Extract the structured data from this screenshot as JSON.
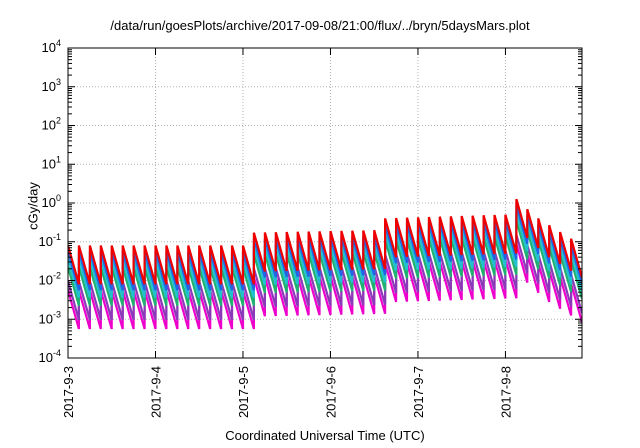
{
  "chart_data": {
    "type": "line",
    "title": "/data/run/goesPlots/archive/2017-09-08/21:00/flux/../bryn/5daysMars.plot",
    "xlabel": "Coordinated Universal Time (UTC)",
    "ylabel": "cGy/day",
    "y_scale": "log",
    "ylim": [
      0.0001,
      10000
    ],
    "y_ticks": [
      {
        "base": "10",
        "exp": "-4"
      },
      {
        "base": "10",
        "exp": "-3"
      },
      {
        "base": "10",
        "exp": "-2"
      },
      {
        "base": "10",
        "exp": "-1"
      },
      {
        "base": "10",
        "exp": "0"
      },
      {
        "base": "10",
        "exp": "1"
      },
      {
        "base": "10",
        "exp": "2"
      },
      {
        "base": "10",
        "exp": "3"
      },
      {
        "base": "10",
        "exp": "4"
      }
    ],
    "x_tick_labels": [
      "2017-9-3",
      "2017-9-4",
      "2017-9-5",
      "2017-9-6",
      "2017-9-7",
      "2017-9-8"
    ],
    "xlim": [
      "2017-09-03 00:00",
      "2017-09-08 21:00"
    ],
    "grid": true,
    "legend": "none",
    "cycle_hours": 3,
    "series": [
      {
        "color": "#ee0000",
        "peak_ratio": 1.0,
        "trough_ratio": 0.1,
        "envelope": [
          [
            "2017-09-03 00:00",
            0.08
          ],
          [
            "2017-09-05 00:00",
            0.08
          ],
          [
            "2017-09-05 01:30",
            0.17
          ],
          [
            "2017-09-06 14:00",
            0.2
          ],
          [
            "2017-09-06 15:00",
            0.4
          ],
          [
            "2017-09-08 00:00",
            0.5
          ],
          [
            "2017-09-08 01:00",
            2.0
          ],
          [
            "2017-09-08 04:00",
            1.0
          ],
          [
            "2017-09-08 09:00",
            0.4
          ],
          [
            "2017-09-08 21:00",
            0.08
          ]
        ]
      },
      {
        "color": "#1e66e6",
        "peak_ratio": 0.7,
        "trough_ratio": 0.1,
        "envelope": [
          [
            "2017-09-03 00:00",
            0.08
          ],
          [
            "2017-09-05 00:00",
            0.08
          ],
          [
            "2017-09-05 01:30",
            0.17
          ],
          [
            "2017-09-06 14:00",
            0.2
          ],
          [
            "2017-09-06 15:00",
            0.4
          ],
          [
            "2017-09-08 00:00",
            0.5
          ],
          [
            "2017-09-08 01:00",
            2.0
          ],
          [
            "2017-09-08 04:00",
            1.0
          ],
          [
            "2017-09-08 09:00",
            0.4
          ],
          [
            "2017-09-08 21:00",
            0.08
          ]
        ]
      },
      {
        "color": "#20c0d0",
        "peak_ratio": 0.45,
        "trough_ratio": 0.1,
        "envelope": [
          [
            "2017-09-03 00:00",
            0.08
          ],
          [
            "2017-09-05 00:00",
            0.08
          ],
          [
            "2017-09-05 01:30",
            0.17
          ],
          [
            "2017-09-06 14:00",
            0.2
          ],
          [
            "2017-09-06 15:00",
            0.4
          ],
          [
            "2017-09-08 00:00",
            0.5
          ],
          [
            "2017-09-08 01:00",
            2.0
          ],
          [
            "2017-09-08 04:00",
            1.0
          ],
          [
            "2017-09-08 09:00",
            0.4
          ],
          [
            "2017-09-08 21:00",
            0.08
          ]
        ]
      },
      {
        "color": "#20b070",
        "peak_ratio": 0.28,
        "trough_ratio": 0.1,
        "envelope": [
          [
            "2017-09-03 00:00",
            0.08
          ],
          [
            "2017-09-05 00:00",
            0.08
          ],
          [
            "2017-09-05 01:30",
            0.17
          ],
          [
            "2017-09-06 14:00",
            0.2
          ],
          [
            "2017-09-06 15:00",
            0.4
          ],
          [
            "2017-09-08 00:00",
            0.5
          ],
          [
            "2017-09-08 01:00",
            2.0
          ],
          [
            "2017-09-08 04:00",
            1.0
          ],
          [
            "2017-09-08 09:00",
            0.4
          ],
          [
            "2017-09-08 21:00",
            0.08
          ]
        ]
      },
      {
        "color": "#8a3ab8",
        "peak_ratio": 0.12,
        "trough_ratio": 0.1,
        "envelope": [
          [
            "2017-09-03 00:00",
            0.08
          ],
          [
            "2017-09-05 00:00",
            0.08
          ],
          [
            "2017-09-05 01:30",
            0.17
          ],
          [
            "2017-09-06 14:00",
            0.2
          ],
          [
            "2017-09-06 15:00",
            0.4
          ],
          [
            "2017-09-08 00:00",
            0.5
          ],
          [
            "2017-09-08 01:00",
            2.0
          ],
          [
            "2017-09-08 04:00",
            1.0
          ],
          [
            "2017-09-08 09:00",
            0.4
          ],
          [
            "2017-09-08 21:00",
            0.08
          ]
        ]
      },
      {
        "color": "#ee00cc",
        "peak_ratio": 0.07,
        "trough_ratio": 0.1,
        "envelope": [
          [
            "2017-09-03 00:00",
            0.08
          ],
          [
            "2017-09-05 00:00",
            0.08
          ],
          [
            "2017-09-05 01:30",
            0.17
          ],
          [
            "2017-09-06 14:00",
            0.2
          ],
          [
            "2017-09-06 15:00",
            0.4
          ],
          [
            "2017-09-08 00:00",
            0.5
          ],
          [
            "2017-09-08 01:00",
            2.0
          ],
          [
            "2017-09-08 04:00",
            1.0
          ],
          [
            "2017-09-08 09:00",
            0.4
          ],
          [
            "2017-09-08 21:00",
            0.08
          ]
        ]
      }
    ]
  }
}
